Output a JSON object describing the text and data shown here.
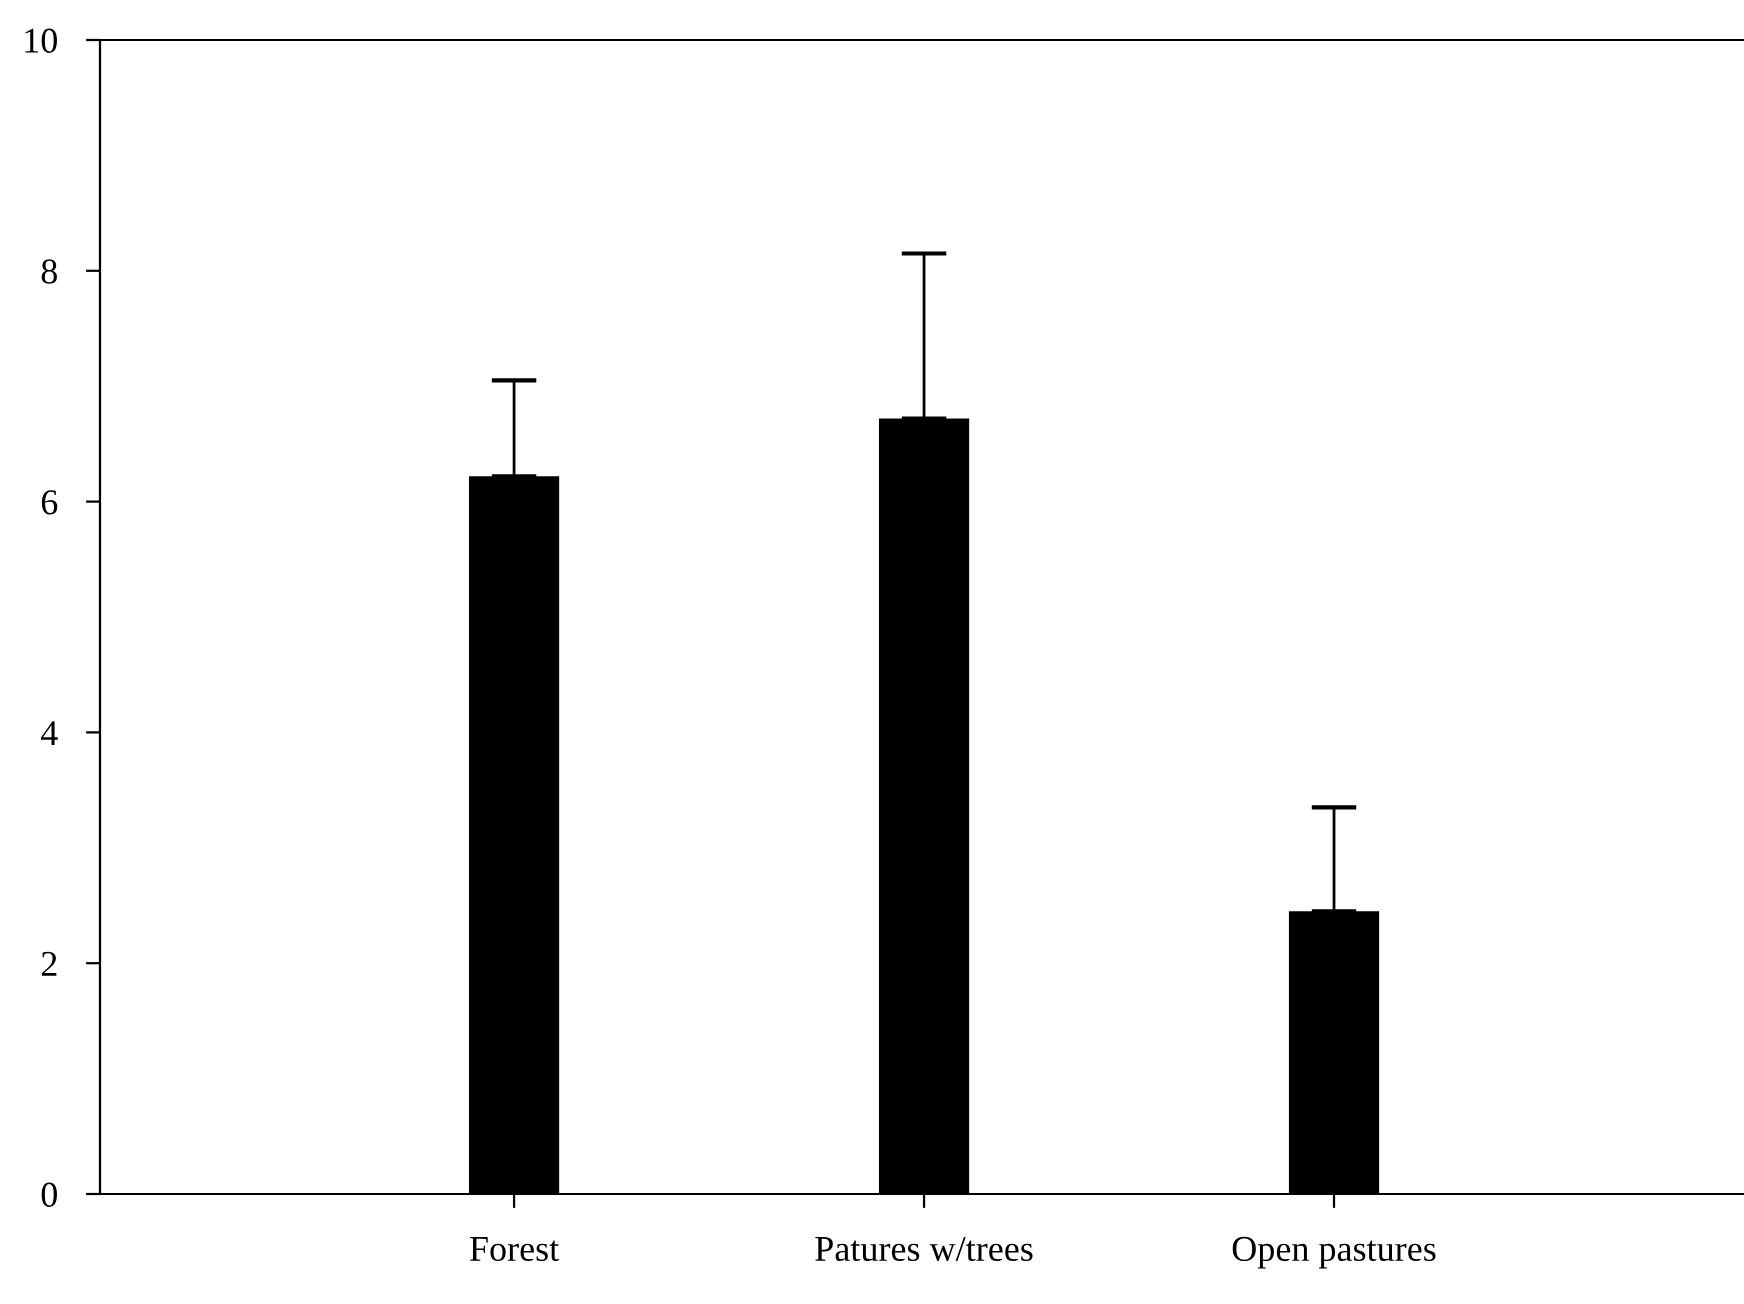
{
  "chart_data": {
    "type": "bar",
    "categories": [
      "Forest",
      "Patures w/trees",
      "Open pastures"
    ],
    "values": [
      6.22,
      6.72,
      2.45
    ],
    "errors": [
      [
        6.22,
        7.05
      ],
      [
        6.72,
        8.15
      ],
      [
        2.45,
        3.35
      ]
    ],
    "color": "#000000",
    "ylim": [
      0,
      10
    ],
    "yticks": [
      0,
      2,
      4,
      6,
      8,
      10
    ],
    "grid": false,
    "legend": false
  }
}
